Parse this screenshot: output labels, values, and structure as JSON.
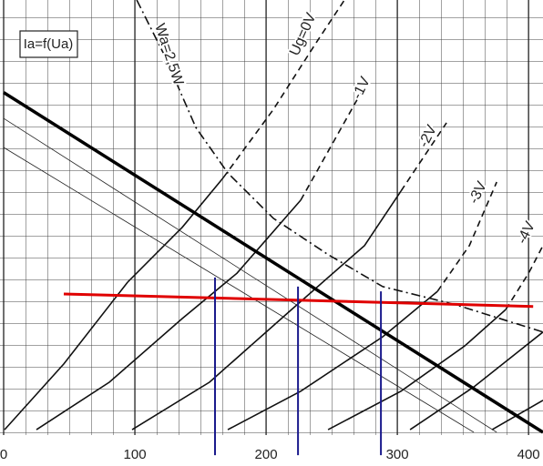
{
  "chart_data": {
    "type": "line",
    "title": "Ia=f(Ua)",
    "xlim": [
      0,
      411
    ],
    "ylim": [
      -7.8,
      100
    ],
    "xticks": [
      0,
      100,
      200,
      300,
      400
    ],
    "grid": true,
    "series": [
      {
        "name": "Ug=0V",
        "color": "#111111",
        "width": 1.6,
        "dashed_from": 167.4,
        "x": [
          0.7,
          45.8,
          94.4,
          136.1,
          167.4,
          205.6,
          236.8,
          259.7
        ],
        "values": [
          0.6,
          15.8,
          34.7,
          47.4,
          58.9,
          74.7,
          89.5,
          100
        ]
      },
      {
        "name": "-1V",
        "color": "#111111",
        "width": 1.6,
        "dashed_from": 226.4,
        "x": [
          25,
          80.6,
          136.1,
          177.8,
          226.4,
          275
        ],
        "values": [
          0.6,
          11.6,
          26.3,
          36.8,
          53.7,
          80
        ]
      },
      {
        "name": "-2V",
        "color": "#111111",
        "width": 1.6,
        "dashed_from": 302.8,
        "x": [
          97.9,
          156.9,
          219.4,
          275,
          302.8,
          337.5
        ],
        "values": [
          0.6,
          11.6,
          28.4,
          43.2,
          55.8,
          71.6
        ]
      },
      {
        "name": "-3V",
        "color": "#111111",
        "width": 1.6,
        "dashed_from": 330.6,
        "x": [
          170.8,
          226.4,
          288.9,
          330.6,
          354.9,
          375.7
        ],
        "values": [
          0.6,
          9.5,
          22.1,
          32.6,
          43.2,
          57.9
        ]
      },
      {
        "name": "-4V",
        "color": "#111111",
        "width": 1.6,
        "dashed_from": 382.6,
        "x": [
          247.2,
          302.8,
          351.4,
          382.6,
          400,
          411
        ],
        "values": [
          0.6,
          9.5,
          20,
          28.4,
          36.8,
          43.2
        ]
      },
      {
        "color": "#111111",
        "width": 1.6,
        "x": [
          309.7,
          358.3,
          411
        ],
        "values": [
          0.6,
          10.5,
          23.2
        ]
      },
      {
        "color": "#111111",
        "width": 1.6,
        "x": [
          372.2,
          411
        ],
        "values": [
          0.6,
          7.4
        ]
      },
      {
        "name": "Wa=2,5W",
        "color": "#111111",
        "width": 1.6,
        "dash": "dashdot",
        "x": [
          101.4,
          122.2,
          146.5,
          170.8,
          205.6,
          247.2,
          288.9,
          344.4,
          411
        ],
        "values": [
          100,
          87.4,
          70.5,
          60,
          49.5,
          41.1,
          33.7,
          29.5,
          23.2
        ]
      },
      {
        "color": "#000000",
        "width": 3.5,
        "x": [
          0,
          411
        ],
        "values": [
          78.6,
          0
        ]
      },
      {
        "color": "#222222",
        "width": 0.8,
        "x": [
          0,
          375.7
        ],
        "values": [
          72.6,
          0
        ]
      },
      {
        "color": "#222222",
        "width": 0.8,
        "x": [
          0,
          358.3
        ],
        "values": [
          65.9,
          0
        ]
      },
      {
        "color": "#e00000",
        "width": 3,
        "x": [
          45.8,
          403.5
        ],
        "values": [
          32,
          29.1
        ]
      },
      {
        "color": "#1a1a8c",
        "width": 2,
        "x": [
          161.1,
          161.1
        ],
        "values": [
          35.8,
          -5.3
        ]
      },
      {
        "color": "#1a1a8c",
        "width": 2,
        "x": [
          224.3,
          224.3
        ],
        "values": [
          33.7,
          -5.3
        ]
      },
      {
        "color": "#1a1a8c",
        "width": 2,
        "x": [
          287.5,
          287.5
        ],
        "values": [
          32.6,
          -5.3
        ]
      }
    ]
  }
}
